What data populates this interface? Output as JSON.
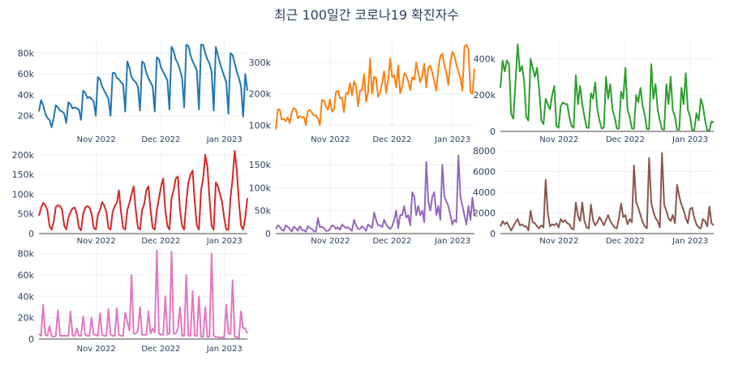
{
  "title": "최근 100일간 코로나19 확진자수",
  "chart_data": [
    {
      "type": "line",
      "color": "#1f77b4",
      "ylim": [
        5000,
        92000
      ],
      "yticks": [
        20000,
        40000,
        60000,
        80000
      ],
      "yticklabels": [
        "20k",
        "40k",
        "60k",
        "80k"
      ],
      "xticklabels": [
        "Nov 2022",
        "Dec 2022",
        "Jan 2023"
      ],
      "grid": true,
      "values": [
        24000,
        35000,
        30000,
        22000,
        18000,
        16000,
        9000,
        18000,
        30000,
        28000,
        25000,
        24000,
        22000,
        13000,
        33000,
        31000,
        27000,
        28000,
        27000,
        26000,
        16000,
        44000,
        42000,
        37000,
        38000,
        36000,
        34000,
        20000,
        57000,
        55000,
        48000,
        44000,
        40000,
        36000,
        20000,
        61000,
        61000,
        56000,
        55000,
        52000,
        50000,
        24000,
        72000,
        66000,
        57000,
        54000,
        52000,
        48000,
        25000,
        72000,
        70000,
        61000,
        56000,
        52000,
        48000,
        24000,
        76000,
        74000,
        66000,
        62000,
        58000,
        54000,
        26000,
        86000,
        82000,
        74000,
        70000,
        64000,
        56000,
        28000,
        88000,
        87000,
        78000,
        72000,
        68000,
        63000,
        26000,
        88000,
        88000,
        80000,
        74000,
        70000,
        62000,
        25000,
        86000,
        78000,
        70000,
        64000,
        58000,
        52000,
        22000,
        80000,
        78000,
        70000,
        62000,
        56000,
        48000,
        19000,
        60000,
        44000
      ]
    },
    {
      "type": "line",
      "color": "#ff7f0e",
      "ylim": [
        80000,
        370000
      ],
      "yticks": [
        100000,
        200000,
        300000
      ],
      "yticklabels": [
        "100k",
        "200k",
        "300k"
      ],
      "xticklabels": [
        "Nov 2022",
        "Dec 2022",
        "Jan 2023"
      ],
      "grid": true,
      "values": [
        86000,
        150000,
        150000,
        118000,
        120000,
        113000,
        125000,
        106000,
        142000,
        155000,
        150000,
        122000,
        129000,
        124000,
        126000,
        100000,
        145000,
        148000,
        140000,
        131000,
        131000,
        120000,
        100000,
        180000,
        178000,
        160000,
        149000,
        182000,
        143000,
        150000,
        205000,
        210000,
        185000,
        188000,
        141000,
        203000,
        200000,
        234000,
        195000,
        240000,
        225000,
        160000,
        210000,
        212000,
        263000,
        175000,
        205000,
        312000,
        200000,
        255000,
        250000,
        190000,
        205000,
        235000,
        272000,
        203000,
        245000,
        312000,
        253000,
        259000,
        220000,
        290000,
        202000,
        223000,
        266000,
        258000,
        240000,
        212000,
        253000,
        245000,
        300000,
        266000,
        237000,
        260000,
        296000,
        220000,
        284000,
        290000,
        268000,
        240000,
        210000,
        280000,
        320000,
        328000,
        290000,
        268000,
        228000,
        300000,
        335000,
        320000,
        295000,
        270000,
        250000,
        210000,
        350000,
        357000,
        340000,
        205000,
        200000,
        280000
      ]
    },
    {
      "type": "line",
      "color": "#2ca02c",
      "ylim": [
        0,
        500000
      ],
      "yticks": [
        0,
        200000,
        400000
      ],
      "yticklabels": [
        "0",
        "200k",
        "400k"
      ],
      "xticklabels": [
        "Nov 2022",
        "Dec 2022",
        "Jan 2023"
      ],
      "grid": true,
      "values": [
        240000,
        390000,
        330000,
        390000,
        370000,
        95000,
        70000,
        270000,
        480000,
        330000,
        360000,
        280000,
        80000,
        60000,
        400000,
        350000,
        300000,
        350000,
        230000,
        60000,
        40000,
        180000,
        150000,
        120000,
        200000,
        250000,
        30000,
        20000,
        140000,
        160000,
        150000,
        150000,
        80000,
        30000,
        20000,
        310000,
        150000,
        250000,
        150000,
        80000,
        20000,
        20000,
        210000,
        180000,
        270000,
        120000,
        60000,
        15000,
        20000,
        300000,
        180000,
        260000,
        120000,
        80000,
        15000,
        15000,
        220000,
        180000,
        350000,
        120000,
        80000,
        15000,
        15000,
        200000,
        160000,
        240000,
        140000,
        90000,
        12000,
        12000,
        370000,
        180000,
        260000,
        120000,
        60000,
        12000,
        10000,
        260000,
        150000,
        300000,
        120000,
        80000,
        10000,
        10000,
        240000,
        150000,
        320000,
        120000,
        80000,
        8000,
        8000,
        100000,
        60000,
        180000,
        140000,
        60000,
        6000,
        6000,
        55000,
        50000
      ]
    },
    {
      "type": "line",
      "color": "#d62728",
      "ylim": [
        0,
        210000
      ],
      "yticks": [
        0,
        50000,
        100000,
        150000,
        200000
      ],
      "yticklabels": [
        "0",
        "50k",
        "100k",
        "150k",
        "200k"
      ],
      "xticklabels": [
        "Nov 2022",
        "Dec 2022",
        "Jan 2023"
      ],
      "grid": true,
      "values": [
        45000,
        65000,
        78000,
        72000,
        60000,
        20000,
        10000,
        30000,
        68000,
        72000,
        70000,
        60000,
        20000,
        10000,
        40000,
        55000,
        64000,
        66000,
        50000,
        15000,
        8000,
        50000,
        66000,
        70000,
        66000,
        50000,
        15000,
        10000,
        48000,
        60000,
        80000,
        72000,
        55000,
        15000,
        10000,
        55000,
        70000,
        78000,
        110000,
        55000,
        15000,
        10000,
        60000,
        78000,
        100000,
        120000,
        60000,
        15000,
        10000,
        60000,
        75000,
        110000,
        120000,
        60000,
        15000,
        10000,
        60000,
        90000,
        120000,
        140000,
        60000,
        20000,
        10000,
        90000,
        110000,
        140000,
        145000,
        60000,
        20000,
        10000,
        80000,
        130000,
        150000,
        160000,
        80000,
        20000,
        10000,
        110000,
        140000,
        200000,
        170000,
        90000,
        20000,
        10000,
        130000,
        120000,
        100000,
        80000,
        40000,
        10000,
        10000,
        90000,
        140000,
        210000,
        160000,
        80000,
        20000,
        10000,
        40000,
        90000
      ]
    },
    {
      "type": "line",
      "color": "#9467bd",
      "ylim": [
        0,
        180000
      ],
      "yticks": [
        0,
        50000,
        100000,
        150000
      ],
      "yticklabels": [
        "0",
        "50k",
        "100k",
        "150k"
      ],
      "xticklabels": [
        "Nov 2022",
        "Dec 2022",
        "Jan 2023"
      ],
      "grid": true,
      "values": [
        10000,
        18000,
        15000,
        8000,
        6000,
        18000,
        15000,
        10000,
        5000,
        15000,
        12000,
        6000,
        16000,
        8000,
        7000,
        4000,
        16000,
        12000,
        10000,
        5000,
        4000,
        34000,
        14000,
        15000,
        12000,
        6000,
        6000,
        10000,
        18000,
        16000,
        10000,
        14000,
        8000,
        20000,
        16000,
        12000,
        14000,
        10000,
        6000,
        30000,
        18000,
        10000,
        10000,
        16000,
        12000,
        6000,
        20000,
        16000,
        12000,
        46000,
        30000,
        18000,
        18000,
        14000,
        30000,
        20000,
        14000,
        10000,
        16000,
        30000,
        50000,
        12000,
        40000,
        40000,
        60000,
        35000,
        40000,
        18000,
        90000,
        80000,
        40000,
        60000,
        40000,
        50000,
        25000,
        156000,
        70000,
        50000,
        80000,
        90000,
        40000,
        60000,
        30000,
        150000,
        80000,
        70000,
        60000,
        40000,
        20000,
        30000,
        25000,
        170000,
        80000,
        60000,
        40000,
        20000,
        60000,
        30000,
        78000,
        40000
      ]
    },
    {
      "type": "line",
      "color": "#8c564b",
      "ylim": [
        0,
        8000
      ],
      "yticks": [
        0,
        2000,
        4000,
        6000,
        8000
      ],
      "yticklabels": [
        "0",
        "2000",
        "4000",
        "6000",
        "8000"
      ],
      "xticklabels": [
        "Nov 2022",
        "Dec 2022",
        "Jan 2023"
      ],
      "grid": true,
      "values": [
        700,
        1200,
        900,
        1100,
        700,
        300,
        700,
        1100,
        1400,
        800,
        900,
        700,
        700,
        300,
        2200,
        1100,
        1000,
        700,
        500,
        800,
        600,
        5200,
        2000,
        700,
        900,
        800,
        1000,
        600,
        1400,
        1100,
        1300,
        1000,
        900,
        500,
        400,
        3000,
        1700,
        1200,
        3000,
        1200,
        600,
        500,
        2800,
        1300,
        800,
        1100,
        1600,
        1200,
        800,
        1300,
        1800,
        1200,
        900,
        600,
        500,
        1500,
        2900,
        1600,
        1800,
        900,
        1400,
        1100,
        6600,
        3000,
        2500,
        1800,
        1100,
        700,
        500,
        7300,
        3000,
        2100,
        1500,
        1200,
        600,
        7800,
        2800,
        2200,
        1500,
        1200,
        1800,
        1000,
        4700,
        3600,
        2800,
        2300,
        1500,
        1000,
        2400,
        2500,
        1500,
        900,
        600,
        500,
        1400,
        1200,
        700,
        2600,
        1000,
        800
      ]
    },
    {
      "type": "line",
      "color": "#e377c2",
      "ylim": [
        0,
        85000
      ],
      "yticks": [
        0,
        20000,
        40000,
        60000,
        80000
      ],
      "yticklabels": [
        "0",
        "20k",
        "40k",
        "60k",
        "80k"
      ],
      "xticklabels": [
        "Nov 2022",
        "Dec 2022",
        "Jan 2023"
      ],
      "grid": true,
      "values": [
        5000,
        3000,
        32000,
        4000,
        3000,
        12000,
        3000,
        2000,
        3000,
        27000,
        3000,
        3000,
        3000,
        3000,
        3000,
        26000,
        3000,
        3000,
        10000,
        3000,
        3000,
        21000,
        4000,
        3000,
        3000,
        20000,
        4000,
        4000,
        3000,
        24000,
        4000,
        3000,
        3000,
        28000,
        4000,
        3000,
        3000,
        29000,
        4000,
        3000,
        3000,
        25000,
        16000,
        8000,
        60000,
        5000,
        5000,
        8000,
        30000,
        4000,
        4000,
        4000,
        26000,
        5000,
        10000,
        6000,
        83000,
        5000,
        4000,
        4000,
        40000,
        4000,
        5000,
        82000,
        5000,
        5000,
        10000,
        30000,
        3000,
        3000,
        60000,
        3000,
        3000,
        45000,
        3000,
        3000,
        40000,
        2000,
        2000,
        30000,
        2000,
        2000,
        80000,
        3000,
        2000,
        2000,
        1000,
        2000,
        1000,
        32000,
        5000,
        5000,
        55000,
        2000,
        2000,
        1000,
        26000,
        10000,
        10000,
        5000
      ]
    }
  ]
}
